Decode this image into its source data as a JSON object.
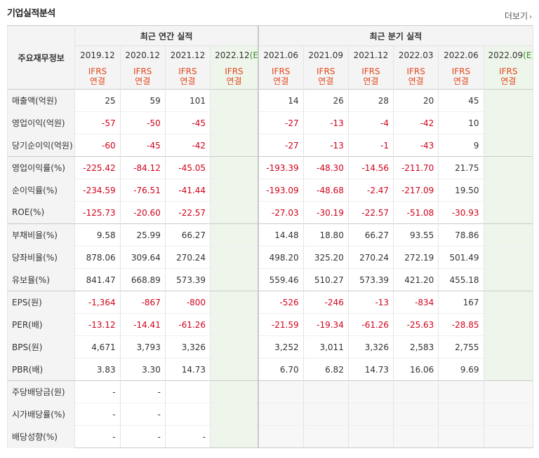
{
  "title": "기업실적분석",
  "more_label": "더보기",
  "header": {
    "row_label": "주요재무정보",
    "annual_group": "최근 연간 실적",
    "quarter_group": "최근 분기 실적",
    "annual_periods": [
      "2019.12",
      "2020.12",
      "2021.12",
      "2022.12"
    ],
    "annual_est_suffix": "(E)",
    "quarter_periods": [
      "2021.06",
      "2021.09",
      "2021.12",
      "2022.03",
      "2022.06",
      "2022.09"
    ],
    "quarter_est_suffix": "(E)",
    "ifrs_top": "IFRS",
    "ifrs_bottom": "연결"
  },
  "rows": [
    {
      "label": "매출액(억원)",
      "annual": [
        "25",
        "59",
        "101",
        ""
      ],
      "quarter": [
        "14",
        "26",
        "28",
        "20",
        "45",
        ""
      ]
    },
    {
      "label": "영업이익(억원)",
      "annual": [
        "-57",
        "-50",
        "-45",
        ""
      ],
      "quarter": [
        "-27",
        "-13",
        "-4",
        "-42",
        "10",
        ""
      ]
    },
    {
      "label": "당기순이익(억원)",
      "annual": [
        "-60",
        "-45",
        "-42",
        ""
      ],
      "quarter": [
        "-27",
        "-13",
        "-1",
        "-43",
        "9",
        ""
      ]
    },
    {
      "label": "영업이익률(%)",
      "annual": [
        "-225.42",
        "-84.12",
        "-45.05",
        ""
      ],
      "quarter": [
        "-193.39",
        "-48.30",
        "-14.56",
        "-211.70",
        "21.75",
        ""
      ]
    },
    {
      "label": "순이익률(%)",
      "annual": [
        "-234.59",
        "-76.51",
        "-41.44",
        ""
      ],
      "quarter": [
        "-193.09",
        "-48.68",
        "-2.47",
        "-217.09",
        "19.50",
        ""
      ]
    },
    {
      "label": "ROE(%)",
      "annual": [
        "-125.73",
        "-20.60",
        "-22.57",
        ""
      ],
      "quarter": [
        "-27.03",
        "-30.19",
        "-22.57",
        "-51.08",
        "-30.93",
        ""
      ]
    },
    {
      "label": "부채비율(%)",
      "annual": [
        "9.58",
        "25.99",
        "66.27",
        ""
      ],
      "quarter": [
        "14.48",
        "18.80",
        "66.27",
        "93.55",
        "78.86",
        ""
      ]
    },
    {
      "label": "당좌비율(%)",
      "annual": [
        "878.06",
        "309.64",
        "270.24",
        ""
      ],
      "quarter": [
        "498.20",
        "325.20",
        "270.24",
        "272.19",
        "501.49",
        ""
      ]
    },
    {
      "label": "유보율(%)",
      "annual": [
        "841.47",
        "668.89",
        "573.39",
        ""
      ],
      "quarter": [
        "559.46",
        "510.27",
        "573.39",
        "421.20",
        "455.18",
        ""
      ]
    },
    {
      "label": "EPS(원)",
      "annual": [
        "-1,364",
        "-867",
        "-800",
        ""
      ],
      "quarter": [
        "-526",
        "-246",
        "-13",
        "-834",
        "167",
        ""
      ]
    },
    {
      "label": "PER(배)",
      "annual": [
        "-13.12",
        "-14.41",
        "-61.26",
        ""
      ],
      "quarter": [
        "-21.59",
        "-19.34",
        "-61.26",
        "-25.63",
        "-28.85",
        ""
      ]
    },
    {
      "label": "BPS(원)",
      "annual": [
        "4,671",
        "3,793",
        "3,326",
        ""
      ],
      "quarter": [
        "3,252",
        "3,011",
        "3,326",
        "2,583",
        "2,755",
        ""
      ]
    },
    {
      "label": "PBR(배)",
      "annual": [
        "3.83",
        "3.30",
        "14.73",
        ""
      ],
      "quarter": [
        "6.70",
        "6.82",
        "14.73",
        "16.06",
        "9.69",
        ""
      ]
    },
    {
      "label": "주당배당금(원)",
      "annual": [
        "-",
        "-",
        "",
        ""
      ],
      "quarter": [
        "",
        "",
        "",
        "",
        "",
        ""
      ]
    },
    {
      "label": "시가배당률(%)",
      "annual": [
        "-",
        "-",
        "",
        ""
      ],
      "quarter": [
        "",
        "",
        "",
        "",
        "",
        ""
      ]
    },
    {
      "label": "배당성향(%)",
      "annual": [
        "-",
        "-",
        "-",
        ""
      ],
      "quarter": [
        "",
        "",
        "",
        "",
        "",
        ""
      ]
    }
  ],
  "colors": {
    "negative": "#d0021b",
    "brand": "#e4481b",
    "estimate_bg": "#eef6ec",
    "estimate_tag": "#3c8c2c"
  }
}
